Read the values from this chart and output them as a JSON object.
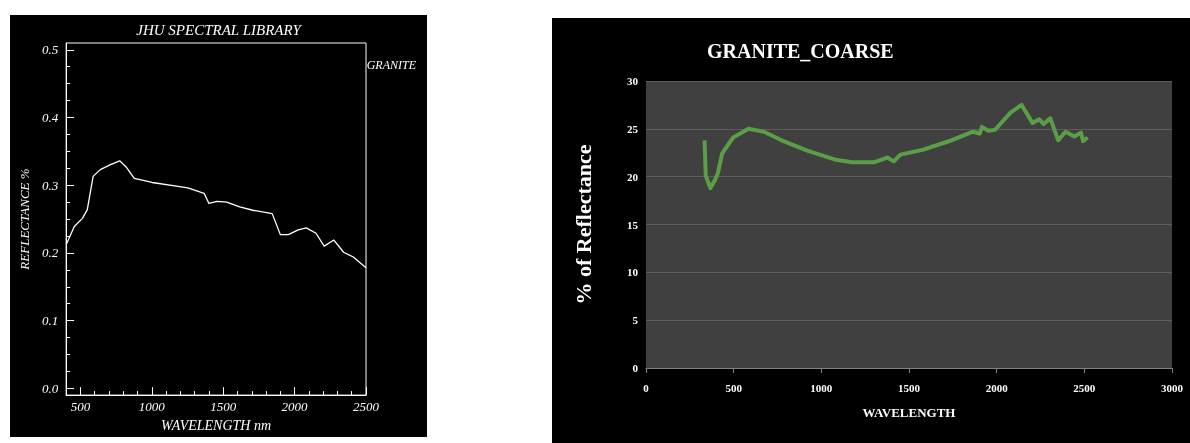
{
  "chart_data": [
    {
      "type": "line",
      "title": "JHU SPECTRAL LIBRARY",
      "xlabel": "WAVELENGTH nm",
      "ylabel": "REFLECTANCE %",
      "xlim": [
        400,
        2500
      ],
      "ylim": [
        -0.01,
        0.51
      ],
      "xticks": [
        500,
        1000,
        1500,
        2000,
        2500
      ],
      "yticks": [
        {
          "value": 0,
          "label": "0.0"
        },
        0.1,
        0.2,
        0.3,
        0.4,
        0.5
      ],
      "grid": false,
      "legend": "top right",
      "marker": "none",
      "series": [
        {
          "name": "GRANITE",
          "color": "#ffffff",
          "x": [
            400,
            457,
            514,
            548,
            589,
            639,
            707,
            775,
            820,
            877,
            1002,
            1161,
            1252,
            1366,
            1400,
            1457,
            1525,
            1616,
            1707,
            1843,
            1900,
            1957,
            2025,
            2082,
            2150,
            2207,
            2275,
            2343,
            2411,
            2500
          ],
          "values": [
            0.212,
            0.239,
            0.251,
            0.264,
            0.313,
            0.323,
            0.33,
            0.336,
            0.327,
            0.31,
            0.304,
            0.299,
            0.296,
            0.288,
            0.273,
            0.276,
            0.275,
            0.268,
            0.263,
            0.258,
            0.227,
            0.227,
            0.234,
            0.237,
            0.229,
            0.21,
            0.219,
            0.201,
            0.194,
            0.178
          ]
        }
      ]
    },
    {
      "type": "line",
      "title": "GRANITE_COARSE",
      "xlabel": "WAVELENGTH",
      "ylabel": "% of Reflectance",
      "xlim": [
        0,
        3000
      ],
      "ylim": [
        0,
        30
      ],
      "xticks": [
        0,
        500,
        1000,
        1500,
        2000,
        2500,
        3000
      ],
      "yticks": [
        0,
        5,
        10,
        15,
        20,
        25,
        30
      ],
      "grid": "y",
      "marker": "none",
      "series": [
        {
          "color": "#5a9e46",
          "x": [
            334,
            341,
            367,
            392,
            409,
            434,
            497,
            585,
            673,
            773,
            924,
            1075,
            1175,
            1300,
            1376,
            1413,
            1451,
            1577,
            1727,
            1865,
            1903,
            1916,
            1953,
            1991,
            2079,
            2142,
            2205,
            2243,
            2268,
            2306,
            2351,
            2393,
            2443,
            2481,
            2493,
            2519
          ],
          "values": [
            23.8,
            20.1,
            18.8,
            19.6,
            20.3,
            22.4,
            24.1,
            25.0,
            24.7,
            23.8,
            22.7,
            21.8,
            21.5,
            21.5,
            22.0,
            21.6,
            22.3,
            22.8,
            23.7,
            24.7,
            24.5,
            25.2,
            24.8,
            24.9,
            26.7,
            27.5,
            25.6,
            26.0,
            25.5,
            26.1,
            23.8,
            24.7,
            24.2,
            24.6,
            23.7,
            24.1
          ]
        }
      ]
    }
  ]
}
